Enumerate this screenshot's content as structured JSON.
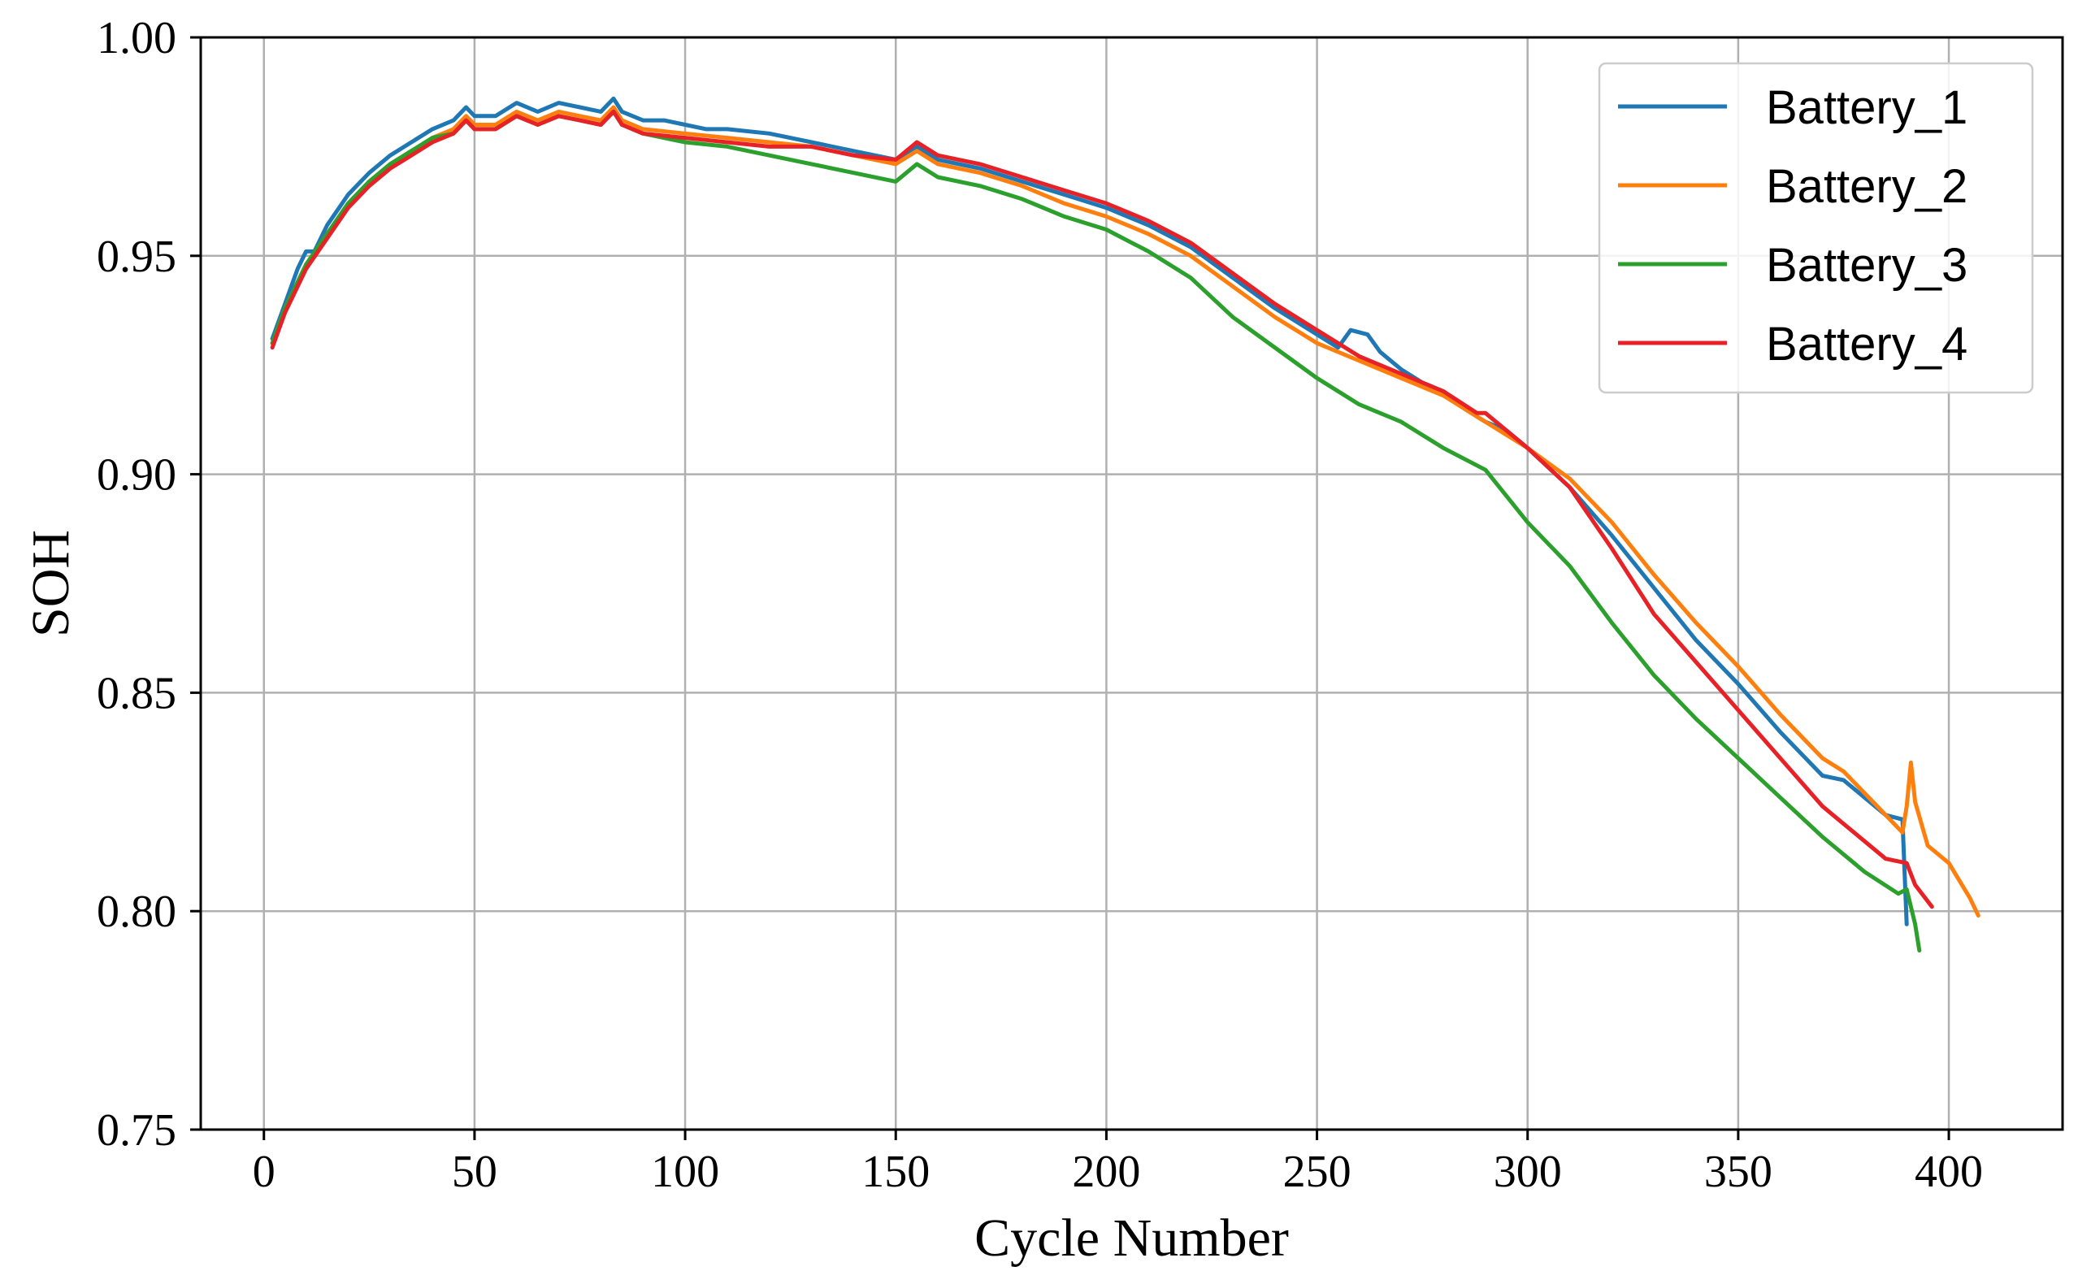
{
  "chart_data": {
    "type": "line",
    "title": "",
    "xlabel": "Cycle Number",
    "ylabel": "SOH",
    "xlim": [
      -15,
      427
    ],
    "ylim": [
      0.75,
      1.0
    ],
    "xticks": [
      0,
      50,
      100,
      150,
      200,
      250,
      300,
      350,
      400
    ],
    "xtick_labels": [
      "0",
      "50",
      "100",
      "150",
      "200",
      "250",
      "300",
      "350",
      "400"
    ],
    "yticks": [
      0.75,
      0.8,
      0.85,
      0.9,
      0.95,
      1.0
    ],
    "ytick_labels": [
      "0.75",
      "0.80",
      "0.85",
      "0.90",
      "0.95",
      "1.00"
    ],
    "grid": true,
    "legend_position": "top-right",
    "series": [
      {
        "name": "Battery_1",
        "color": "#1f77b4",
        "points": [
          [
            2,
            0.931
          ],
          [
            5,
            0.939
          ],
          [
            8,
            0.947
          ],
          [
            10,
            0.951
          ],
          [
            12,
            0.951
          ],
          [
            15,
            0.957
          ],
          [
            20,
            0.964
          ],
          [
            25,
            0.969
          ],
          [
            30,
            0.973
          ],
          [
            35,
            0.976
          ],
          [
            40,
            0.979
          ],
          [
            45,
            0.981
          ],
          [
            48,
            0.984
          ],
          [
            50,
            0.982
          ],
          [
            55,
            0.982
          ],
          [
            60,
            0.985
          ],
          [
            65,
            0.983
          ],
          [
            70,
            0.985
          ],
          [
            75,
            0.984
          ],
          [
            80,
            0.983
          ],
          [
            83,
            0.986
          ],
          [
            85,
            0.983
          ],
          [
            90,
            0.981
          ],
          [
            95,
            0.981
          ],
          [
            100,
            0.98
          ],
          [
            105,
            0.979
          ],
          [
            110,
            0.979
          ],
          [
            120,
            0.978
          ],
          [
            130,
            0.976
          ],
          [
            140,
            0.974
          ],
          [
            150,
            0.972
          ],
          [
            155,
            0.975
          ],
          [
            160,
            0.972
          ],
          [
            170,
            0.97
          ],
          [
            180,
            0.967
          ],
          [
            190,
            0.964
          ],
          [
            200,
            0.961
          ],
          [
            210,
            0.957
          ],
          [
            220,
            0.952
          ],
          [
            230,
            0.945
          ],
          [
            240,
            0.938
          ],
          [
            250,
            0.932
          ],
          [
            255,
            0.929
          ],
          [
            258,
            0.933
          ],
          [
            262,
            0.932
          ],
          [
            265,
            0.928
          ],
          [
            270,
            0.924
          ],
          [
            275,
            0.921
          ],
          [
            280,
            0.919
          ],
          [
            285,
            0.915
          ],
          [
            290,
            0.912
          ],
          [
            295,
            0.91
          ],
          [
            300,
            0.906
          ],
          [
            310,
            0.897
          ],
          [
            320,
            0.886
          ],
          [
            330,
            0.874
          ],
          [
            340,
            0.862
          ],
          [
            350,
            0.852
          ],
          [
            360,
            0.841
          ],
          [
            370,
            0.831
          ],
          [
            375,
            0.83
          ],
          [
            380,
            0.826
          ],
          [
            385,
            0.822
          ],
          [
            389,
            0.821
          ],
          [
            390,
            0.797
          ]
        ]
      },
      {
        "name": "Battery_2",
        "color": "#ff7f0e",
        "points": [
          [
            2,
            0.93
          ],
          [
            5,
            0.938
          ],
          [
            10,
            0.948
          ],
          [
            15,
            0.955
          ],
          [
            20,
            0.962
          ],
          [
            25,
            0.967
          ],
          [
            30,
            0.971
          ],
          [
            35,
            0.974
          ],
          [
            40,
            0.977
          ],
          [
            45,
            0.979
          ],
          [
            48,
            0.982
          ],
          [
            50,
            0.98
          ],
          [
            55,
            0.98
          ],
          [
            60,
            0.983
          ],
          [
            65,
            0.981
          ],
          [
            70,
            0.983
          ],
          [
            75,
            0.982
          ],
          [
            80,
            0.981
          ],
          [
            83,
            0.984
          ],
          [
            85,
            0.981
          ],
          [
            90,
            0.979
          ],
          [
            100,
            0.978
          ],
          [
            110,
            0.977
          ],
          [
            120,
            0.976
          ],
          [
            130,
            0.975
          ],
          [
            140,
            0.973
          ],
          [
            150,
            0.971
          ],
          [
            155,
            0.974
          ],
          [
            160,
            0.971
          ],
          [
            170,
            0.969
          ],
          [
            180,
            0.966
          ],
          [
            190,
            0.962
          ],
          [
            200,
            0.959
          ],
          [
            210,
            0.955
          ],
          [
            220,
            0.95
          ],
          [
            230,
            0.943
          ],
          [
            240,
            0.936
          ],
          [
            250,
            0.93
          ],
          [
            260,
            0.926
          ],
          [
            270,
            0.922
          ],
          [
            280,
            0.918
          ],
          [
            290,
            0.912
          ],
          [
            300,
            0.906
          ],
          [
            310,
            0.899
          ],
          [
            320,
            0.889
          ],
          [
            330,
            0.877
          ],
          [
            340,
            0.866
          ],
          [
            350,
            0.856
          ],
          [
            360,
            0.845
          ],
          [
            370,
            0.835
          ],
          [
            375,
            0.832
          ],
          [
            380,
            0.827
          ],
          [
            385,
            0.822
          ],
          [
            389,
            0.818
          ],
          [
            390,
            0.824
          ],
          [
            391,
            0.834
          ],
          [
            392,
            0.825
          ],
          [
            395,
            0.815
          ],
          [
            400,
            0.811
          ],
          [
            405,
            0.803
          ],
          [
            407,
            0.799
          ]
        ]
      },
      {
        "name": "Battery_3",
        "color": "#2ca02c",
        "points": [
          [
            2,
            0.93
          ],
          [
            5,
            0.938
          ],
          [
            10,
            0.948
          ],
          [
            15,
            0.955
          ],
          [
            20,
            0.962
          ],
          [
            25,
            0.967
          ],
          [
            30,
            0.971
          ],
          [
            35,
            0.974
          ],
          [
            40,
            0.977
          ],
          [
            45,
            0.978
          ],
          [
            48,
            0.981
          ],
          [
            50,
            0.979
          ],
          [
            55,
            0.979
          ],
          [
            60,
            0.982
          ],
          [
            65,
            0.98
          ],
          [
            70,
            0.982
          ],
          [
            75,
            0.981
          ],
          [
            80,
            0.98
          ],
          [
            83,
            0.983
          ],
          [
            85,
            0.98
          ],
          [
            90,
            0.978
          ],
          [
            100,
            0.976
          ],
          [
            110,
            0.975
          ],
          [
            120,
            0.973
          ],
          [
            130,
            0.971
          ],
          [
            140,
            0.969
          ],
          [
            150,
            0.967
          ],
          [
            155,
            0.971
          ],
          [
            160,
            0.968
          ],
          [
            170,
            0.966
          ],
          [
            180,
            0.963
          ],
          [
            190,
            0.959
          ],
          [
            200,
            0.956
          ],
          [
            210,
            0.951
          ],
          [
            220,
            0.945
          ],
          [
            230,
            0.936
          ],
          [
            240,
            0.929
          ],
          [
            250,
            0.922
          ],
          [
            260,
            0.916
          ],
          [
            270,
            0.912
          ],
          [
            280,
            0.906
          ],
          [
            290,
            0.901
          ],
          [
            300,
            0.889
          ],
          [
            310,
            0.879
          ],
          [
            320,
            0.866
          ],
          [
            330,
            0.854
          ],
          [
            340,
            0.844
          ],
          [
            350,
            0.835
          ],
          [
            360,
            0.826
          ],
          [
            370,
            0.817
          ],
          [
            380,
            0.809
          ],
          [
            388,
            0.804
          ],
          [
            390,
            0.805
          ],
          [
            392,
            0.797
          ],
          [
            393,
            0.791
          ]
        ]
      },
      {
        "name": "Battery_4",
        "color": "#e82127",
        "points": [
          [
            2,
            0.929
          ],
          [
            5,
            0.937
          ],
          [
            10,
            0.947
          ],
          [
            15,
            0.954
          ],
          [
            20,
            0.961
          ],
          [
            25,
            0.966
          ],
          [
            30,
            0.97
          ],
          [
            35,
            0.973
          ],
          [
            40,
            0.976
          ],
          [
            45,
            0.978
          ],
          [
            48,
            0.981
          ],
          [
            50,
            0.979
          ],
          [
            55,
            0.979
          ],
          [
            60,
            0.982
          ],
          [
            65,
            0.98
          ],
          [
            70,
            0.982
          ],
          [
            75,
            0.981
          ],
          [
            80,
            0.98
          ],
          [
            83,
            0.983
          ],
          [
            85,
            0.98
          ],
          [
            90,
            0.978
          ],
          [
            100,
            0.977
          ],
          [
            110,
            0.976
          ],
          [
            120,
            0.975
          ],
          [
            130,
            0.975
          ],
          [
            140,
            0.973
          ],
          [
            150,
            0.972
          ],
          [
            155,
            0.976
          ],
          [
            160,
            0.973
          ],
          [
            170,
            0.971
          ],
          [
            180,
            0.968
          ],
          [
            190,
            0.965
          ],
          [
            200,
            0.962
          ],
          [
            210,
            0.958
          ],
          [
            220,
            0.953
          ],
          [
            230,
            0.946
          ],
          [
            240,
            0.939
          ],
          [
            250,
            0.933
          ],
          [
            260,
            0.927
          ],
          [
            270,
            0.923
          ],
          [
            280,
            0.919
          ],
          [
            288,
            0.914
          ],
          [
            290,
            0.914
          ],
          [
            295,
            0.91
          ],
          [
            300,
            0.906
          ],
          [
            310,
            0.897
          ],
          [
            320,
            0.883
          ],
          [
            330,
            0.868
          ],
          [
            340,
            0.857
          ],
          [
            350,
            0.846
          ],
          [
            360,
            0.835
          ],
          [
            370,
            0.824
          ],
          [
            380,
            0.816
          ],
          [
            385,
            0.812
          ],
          [
            390,
            0.811
          ],
          [
            392,
            0.806
          ],
          [
            396,
            0.801
          ]
        ]
      }
    ]
  }
}
